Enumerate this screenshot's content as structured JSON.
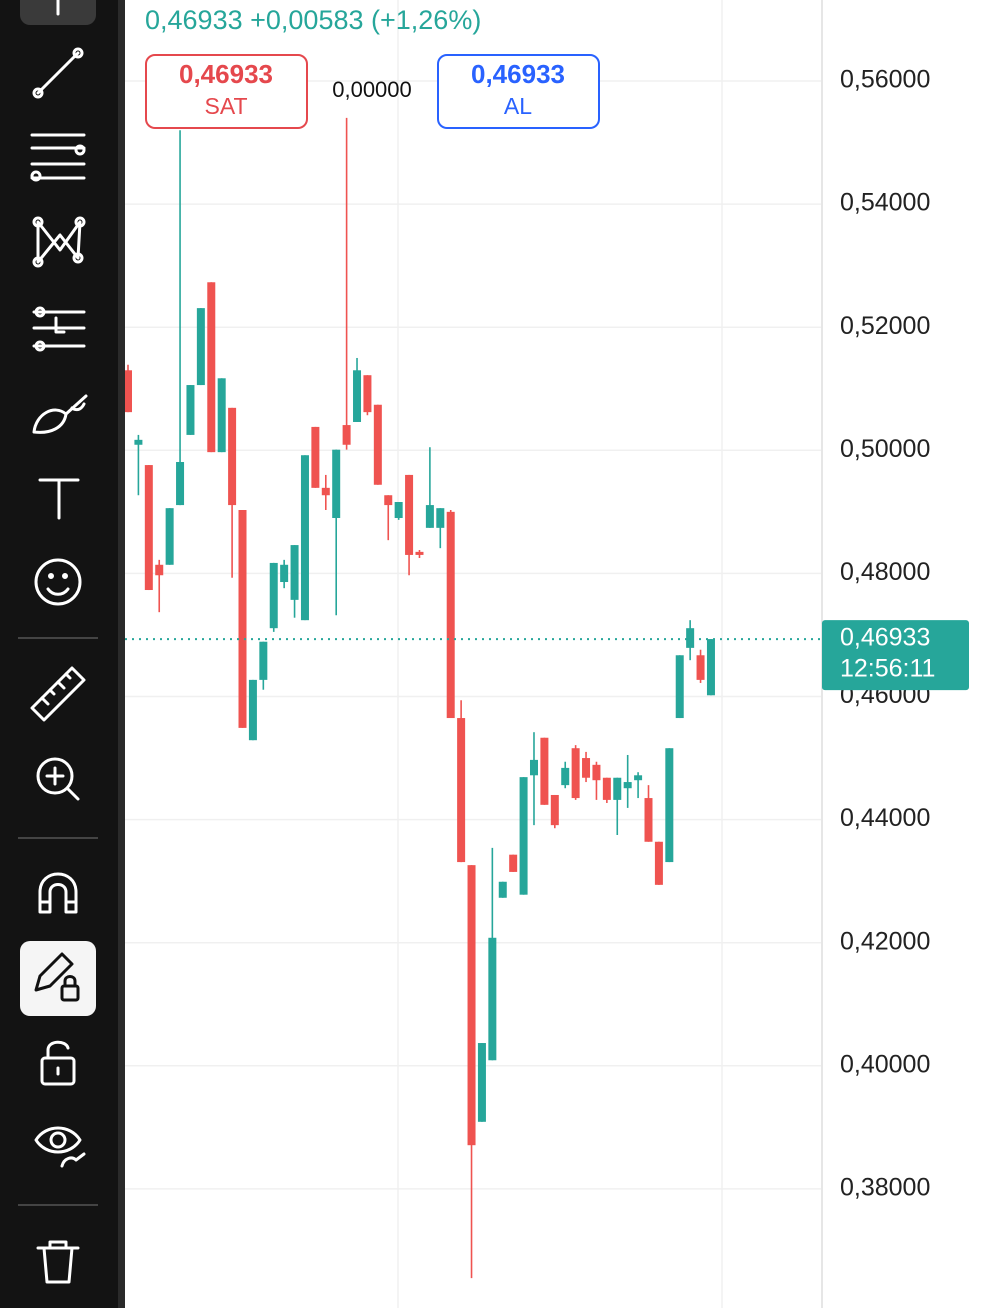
{
  "header": {
    "price": "0,46933",
    "change": "+0,00583",
    "change_pct": "(+1,26%)"
  },
  "order_panel": {
    "sell": {
      "price": "0,46933",
      "label": "SAT"
    },
    "spread": "0,00000",
    "buy": {
      "price": "0,46933",
      "label": "AL"
    }
  },
  "chart_data": {
    "type": "candlestick",
    "up_color": "#26a69a",
    "down_color": "#ef5350",
    "ylim": [
      0.36065,
      0.57316
    ],
    "yticks": [
      {
        "value": 0.56,
        "label": "0,56000"
      },
      {
        "value": 0.54,
        "label": "0,54000"
      },
      {
        "value": 0.52,
        "label": "0,52000"
      },
      {
        "value": 0.5,
        "label": "0,50000"
      },
      {
        "value": 0.48,
        "label": "0,48000"
      },
      {
        "value": 0.46,
        "label": "0,46000"
      },
      {
        "value": 0.44,
        "label": "0,44000"
      },
      {
        "value": 0.42,
        "label": "0,42000"
      },
      {
        "value": 0.4,
        "label": "0,40000"
      },
      {
        "value": 0.38,
        "label": "0,38000"
      }
    ],
    "grid": true,
    "open": [
      0.513,
      0.5009,
      0.4976,
      0.4814,
      0.4814,
      0.4911,
      0.5025,
      0.5106,
      0.5273,
      0.4997,
      0.5069,
      0.4903,
      0.4529,
      0.4627,
      0.4711,
      0.4786,
      0.4757,
      0.4724,
      0.5038,
      0.4939,
      0.489,
      0.5041,
      0.5046,
      0.5122,
      0.5074,
      0.4927,
      0.489,
      0.496,
      0.4835,
      0.4874,
      0.4874,
      0.49,
      0.4565,
      0.4326,
      0.3909,
      0.4009,
      0.4273,
      0.4343,
      0.4278,
      0.4472,
      0.4533,
      0.444,
      0.4456,
      0.4516,
      0.45,
      0.4489,
      0.4468,
      0.4432,
      0.4451,
      0.4464,
      0.4435,
      0.4364,
      0.4331,
      0.4565,
      0.4679,
      0.4667,
      0.4602
    ],
    "high": [
      0.5139,
      0.5025,
      0.4976,
      0.4822,
      0.4906,
      0.552,
      0.5106,
      0.5231,
      0.5273,
      0.5117,
      0.5069,
      0.4903,
      0.4627,
      0.4689,
      0.4817,
      0.4822,
      0.4846,
      0.4992,
      0.5038,
      0.496,
      0.5001,
      0.554,
      0.515,
      0.5122,
      0.5074,
      0.4927,
      0.4916,
      0.496,
      0.4838,
      0.5005,
      0.4906,
      0.4903,
      0.4594,
      0.4326,
      0.4037,
      0.4354,
      0.4299,
      0.4343,
      0.4469,
      0.4542,
      0.4533,
      0.444,
      0.4494,
      0.4521,
      0.451,
      0.4494,
      0.4468,
      0.4468,
      0.4505,
      0.4477,
      0.4456,
      0.4364,
      0.4516,
      0.4667,
      0.4724,
      0.4676,
      0.46933
    ],
    "low": [
      0.5062,
      0.4927,
      0.4773,
      0.4737,
      0.4814,
      0.4911,
      0.5025,
      0.5106,
      0.4997,
      0.4997,
      0.4793,
      0.4549,
      0.4529,
      0.4611,
      0.4705,
      0.4776,
      0.4728,
      0.4724,
      0.4939,
      0.4903,
      0.4732,
      0.5001,
      0.5046,
      0.5057,
      0.4944,
      0.4854,
      0.4887,
      0.4797,
      0.4825,
      0.4874,
      0.4841,
      0.4565,
      0.4331,
      0.3655,
      0.3909,
      0.4009,
      0.4273,
      0.4315,
      0.4278,
      0.4391,
      0.4424,
      0.4386,
      0.4451,
      0.4432,
      0.4461,
      0.4432,
      0.4427,
      0.4375,
      0.4419,
      0.4435,
      0.4364,
      0.4294,
      0.4331,
      0.4565,
      0.4659,
      0.4622,
      0.4602
    ],
    "close": [
      0.5062,
      0.5017,
      0.4773,
      0.4797,
      0.4906,
      0.4981,
      0.5106,
      0.5231,
      0.4997,
      0.5117,
      0.4911,
      0.4549,
      0.4627,
      0.4689,
      0.4817,
      0.4814,
      0.4846,
      0.4992,
      0.4939,
      0.4927,
      0.5001,
      0.5009,
      0.513,
      0.5062,
      0.4944,
      0.4911,
      0.4916,
      0.483,
      0.483,
      0.4911,
      0.4906,
      0.4565,
      0.4331,
      0.3871,
      0.4037,
      0.4208,
      0.4299,
      0.4315,
      0.4469,
      0.4497,
      0.4424,
      0.4391,
      0.4484,
      0.4435,
      0.4468,
      0.4464,
      0.4432,
      0.4468,
      0.4461,
      0.4472,
      0.4364,
      0.4294,
      0.4516,
      0.4667,
      0.4711,
      0.4627,
      0.46933
    ],
    "price_line": {
      "value": 0.46933,
      "label": "0,46933",
      "countdown": "12:56:11"
    }
  }
}
